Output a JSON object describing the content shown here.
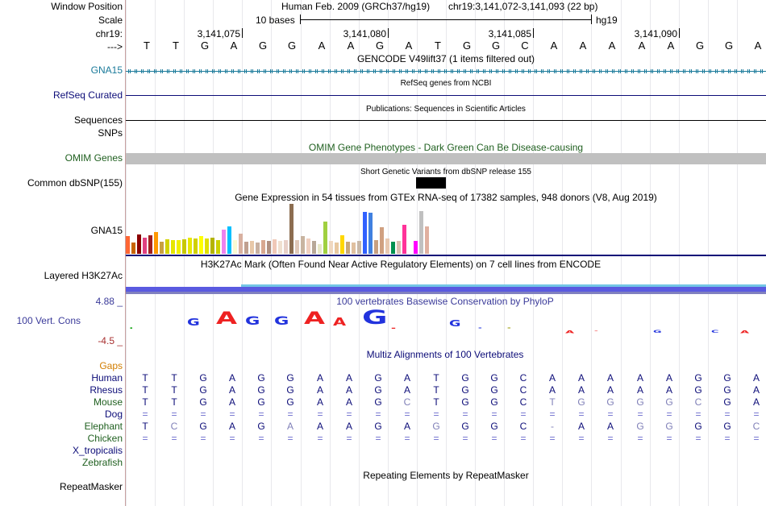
{
  "colors": {
    "gencode": "#1a7a9a",
    "refseq": "#0c0c78",
    "omim": "#206020",
    "h3k": "#000000",
    "phylop": "#3b3b9a",
    "gaps": "#d27d00",
    "multiz_species": "#0c0c78",
    "multiz_text": "#0c0c78"
  },
  "header": {
    "window_label": "Window Position",
    "assembly": "Human Feb. 2009 (GRCh37/hg19)",
    "position": "chr19:3,141,072-3,141,093 (22 bp)",
    "scale_label": "Scale",
    "scale_text": "10 bases",
    "db": "hg19",
    "chrom_label": "chr19:",
    "strand_label": "--->",
    "ticks": [
      "3,141,075",
      "3,141,080",
      "3,141,085",
      "3,141,090"
    ]
  },
  "sequence": [
    "T",
    "T",
    "G",
    "A",
    "G",
    "G",
    "A",
    "A",
    "G",
    "A",
    "T",
    "G",
    "G",
    "C",
    "A",
    "A",
    "A",
    "A",
    "A",
    "G",
    "G",
    "A"
  ],
  "tracks": {
    "gencode": {
      "title": "GENCODE V49lift37 (1 items filtered out)",
      "label": "GNA15"
    },
    "refseq": {
      "title": "RefSeq genes from NCBI",
      "label": "RefSeq Curated"
    },
    "publications": {
      "title": "Publications: Sequences in Scientific Articles",
      "label": "Sequences"
    },
    "snps": {
      "label": "SNPs"
    },
    "omim": {
      "title": "OMIM Gene Phenotypes - Dark Green Can Be Disease-causing",
      "label": "OMIM Genes"
    },
    "dbsnp": {
      "title": "Short Genetic Variants from dbSNP release 155",
      "label": "Common dbSNP(155)"
    },
    "gtex": {
      "title": "Gene Expression in 54 tissues from GTEx RNA-seq of 17382 samples, 948 donors (V8, Aug 2019)",
      "label": "GNA15",
      "values": [
        0.35,
        0.22,
        0.38,
        0.33,
        0.37,
        0.43,
        0.24,
        0.29,
        0.27,
        0.28,
        0.29,
        0.33,
        0.31,
        0.36,
        0.3,
        0.33,
        0.28,
        0.48,
        0.55,
        0.27,
        0.41,
        0.24,
        0.26,
        0.22,
        0.27,
        0.25,
        0.29,
        0.26,
        0.28,
        1.0,
        0.28,
        0.36,
        0.31,
        0.25,
        0.19,
        0.65,
        0.25,
        0.22,
        0.37,
        0.24,
        0.22,
        0.26,
        0.84,
        0.82,
        0.27,
        0.53,
        0.3,
        0.24,
        0.25,
        0.58,
        0.24,
        0.26,
        0.86,
        0.55
      ],
      "colors": [
        "#ff6633",
        "#c86400",
        "#8b0000",
        "#e04080",
        "#a02020",
        "#ff9900",
        "#c8a040",
        "#d2d200",
        "#e6e600",
        "#f0f000",
        "#c8c800",
        "#e8e800",
        "#d0d000",
        "#ffff00",
        "#e0e000",
        "#b4b400",
        "#ccd200",
        "#ee82ee",
        "#00c0ff",
        "#fafad2",
        "#d8b0a0",
        "#c0a090",
        "#e8c8a8",
        "#c8b0a0",
        "#d8a890",
        "#b09080",
        "#f0c8b8",
        "#f0e0d0",
        "#e8d0c8",
        "#8c6d50",
        "#e0c8b8",
        "#c8b4a0",
        "#f0d0c0",
        "#b8a898",
        "#e8e8c8",
        "#a0d040",
        "#f0d8c0",
        "#e8c8a0",
        "#ffd700",
        "#c8a878",
        "#e0c0a0",
        "#c8b8a8",
        "#3060ff",
        "#4080e0",
        "#c8a080",
        "#d0a080",
        "#e8c8b0",
        "#009050",
        "#d8c0b0",
        "#ff3399",
        "#ffffff",
        "#ff00ff",
        "#c0c0c0",
        "#e0b0a0"
      ]
    },
    "h3k27ac": {
      "title": "H3K27Ac Mark (Often Found Near Active Regulatory Elements) on 7 cell lines from ENCODE",
      "label": "Layered H3K27Ac"
    },
    "phylop": {
      "title": "100 vertebrates Basewise Conservation by PhyloP",
      "label": "100 Vert. Cons",
      "max": "4.88 _",
      "min": "-4.5 _"
    },
    "multiz": {
      "title": "Multiz Alignments of 100 Vertebrates",
      "gaps_label": "Gaps",
      "species": [
        {
          "name": "Human",
          "bases": [
            "T",
            "T",
            "G",
            "A",
            "G",
            "G",
            "A",
            "A",
            "G",
            "A",
            "T",
            "G",
            "G",
            "C",
            "A",
            "A",
            "A",
            "A",
            "A",
            "G",
            "G",
            "A"
          ]
        },
        {
          "name": "Rhesus",
          "bases": [
            "T",
            "T",
            "G",
            "A",
            "G",
            "G",
            "A",
            "A",
            "G",
            "A",
            "T",
            "G",
            "G",
            "C",
            "A",
            "A",
            "A",
            "A",
            "A",
            "G",
            "G",
            "A"
          ]
        },
        {
          "name": "Mouse",
          "bases": [
            "T",
            "T",
            "G",
            "A",
            "G",
            "G",
            "A",
            "A",
            "G",
            "C",
            "T",
            "G",
            "G",
            "C",
            "T",
            "G",
            "G",
            "G",
            "G",
            "C",
            "G",
            "A"
          ]
        },
        {
          "name": "Dog",
          "bases": [
            "=",
            "=",
            "=",
            "=",
            "=",
            "=",
            "=",
            "=",
            "=",
            "=",
            "=",
            "=",
            "=",
            "=",
            "=",
            "=",
            "=",
            "=",
            "=",
            "=",
            "=",
            "="
          ]
        },
        {
          "name": "Elephant",
          "bases": [
            "T",
            "C",
            "G",
            "A",
            "G",
            "A",
            "A",
            "A",
            "G",
            "A",
            "G",
            "G",
            "G",
            "C",
            "-",
            "A",
            "A",
            "G",
            "G",
            "G",
            "G",
            "C"
          ]
        },
        {
          "name": "Chicken",
          "bases": [
            "=",
            "=",
            "=",
            "=",
            "=",
            "=",
            "=",
            "=",
            "=",
            "=",
            "=",
            "=",
            "=",
            "=",
            "=",
            "=",
            "=",
            "=",
            "=",
            "=",
            "=",
            "="
          ]
        },
        {
          "name": "X_tropicalis",
          "bases": []
        },
        {
          "name": "Zebrafish",
          "bases": []
        }
      ]
    },
    "repeatmasker": {
      "title": "Repeating Elements by RepeatMasker",
      "label": "RepeatMasker"
    }
  }
}
